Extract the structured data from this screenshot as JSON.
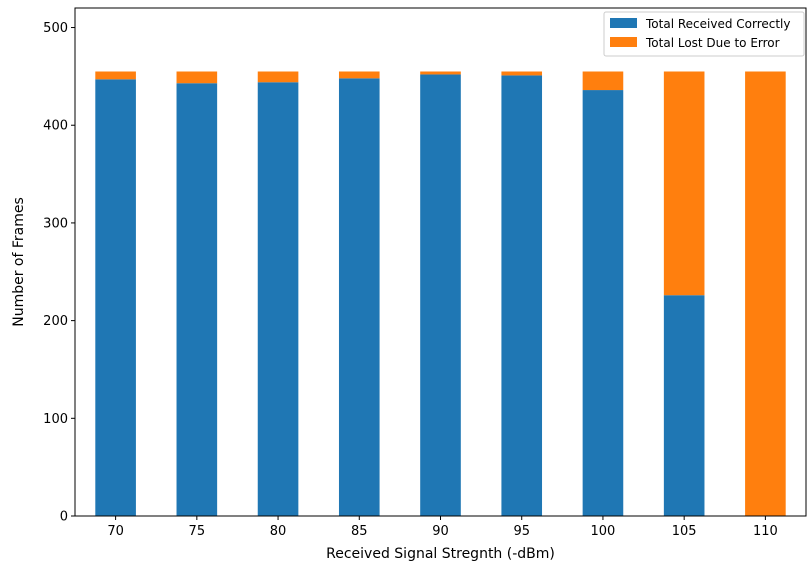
{
  "chart_data": {
    "type": "bar",
    "stacked": true,
    "categories": [
      "70",
      "75",
      "80",
      "85",
      "90",
      "95",
      "100",
      "105",
      "110"
    ],
    "series": [
      {
        "name": "Total Received Correctly",
        "color": "#1f77b4",
        "values": [
          447,
          443,
          444,
          448,
          452,
          451,
          436,
          226,
          0
        ]
      },
      {
        "name": "Total Lost Due to Error",
        "color": "#ff7f0e",
        "values": [
          8,
          12,
          11,
          7,
          3,
          4,
          19,
          229,
          455
        ]
      }
    ],
    "xlabel": "Received Signal Stregnth (-dBm)",
    "ylabel": "Number of Frames",
    "ylim": [
      0,
      520
    ],
    "yticks": [
      0,
      100,
      200,
      300,
      400,
      500
    ],
    "grid": false,
    "legend_position": "top-right"
  }
}
